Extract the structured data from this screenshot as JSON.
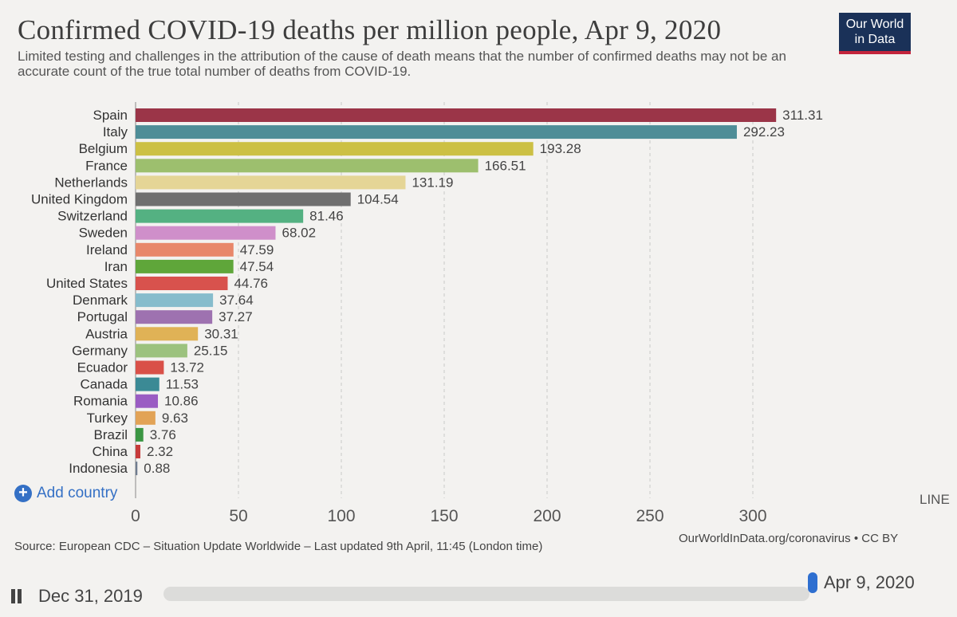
{
  "title": "Confirmed COVID-19 deaths per million people, Apr 9, 2020",
  "subtitle": "Limited testing and challenges in the attribution of the cause of death means that the number of confirmed deaths may not be an accurate count of the true total number of deaths from COVID-19.",
  "logo": {
    "line1": "Our World",
    "line2": "in Data"
  },
  "add_country": {
    "label": "Add country",
    "icon": "plus-icon"
  },
  "tab_line": "LINE",
  "source": "Source: European CDC – Situation Update Worldwide – Last updated 9th April, 11:45 (London time)",
  "credit": "OurWorldInData.org/coronavirus • CC BY",
  "timeline": {
    "start": "Dec 31, 2019",
    "end": "Apr 9, 2020",
    "position": 1.0
  },
  "chart_data": {
    "type": "bar",
    "orientation": "horizontal",
    "title": "Confirmed COVID-19 deaths per million people, Apr 9, 2020",
    "xlabel": "",
    "ylabel": "",
    "xlim": [
      0,
      300
    ],
    "xticks": [
      0,
      50,
      100,
      150,
      200,
      250,
      300
    ],
    "grid": true,
    "categories": [
      "Spain",
      "Italy",
      "Belgium",
      "France",
      "Netherlands",
      "United Kingdom",
      "Switzerland",
      "Sweden",
      "Ireland",
      "Iran",
      "United States",
      "Denmark",
      "Portugal",
      "Austria",
      "Germany",
      "Ecuador",
      "Canada",
      "Romania",
      "Turkey",
      "Brazil",
      "China",
      "Indonesia"
    ],
    "values": [
      311.31,
      292.23,
      193.28,
      166.51,
      131.19,
      104.54,
      81.46,
      68.02,
      47.59,
      47.54,
      44.76,
      37.64,
      37.27,
      30.31,
      25.15,
      13.72,
      11.53,
      10.86,
      9.63,
      3.76,
      2.32,
      0.88
    ],
    "value_labels": [
      "311.31",
      "292.23",
      "193.28",
      "166.51",
      "131.19",
      "104.54",
      "81.46",
      "68.02",
      "47.59",
      "47.54",
      "44.76",
      "37.64",
      "37.27",
      "30.31",
      "25.15",
      "13.72",
      "11.53",
      "10.86",
      "9.63",
      "3.76",
      "2.32",
      "0.88"
    ],
    "colors": [
      "#9b3548",
      "#4e8d97",
      "#ccc044",
      "#9dbf6e",
      "#e5d596",
      "#6f6f6f",
      "#54b182",
      "#cf8fca",
      "#e8876a",
      "#5fa63a",
      "#d8524d",
      "#86bccc",
      "#9e72b0",
      "#e0b256",
      "#9cc27e",
      "#d95048",
      "#3b8a95",
      "#9a5cc3",
      "#e2a356",
      "#3b9643",
      "#c73b3b",
      "#6f7c8f"
    ]
  }
}
